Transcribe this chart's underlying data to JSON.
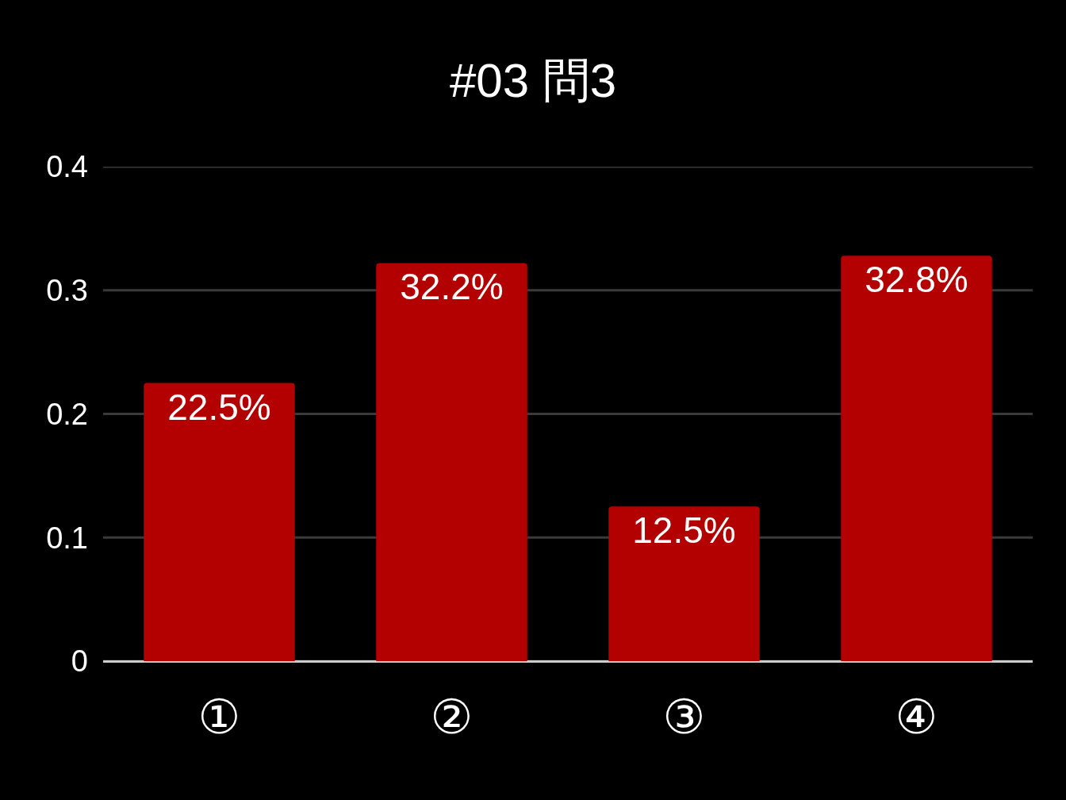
{
  "chart_data": {
    "type": "bar",
    "title": "#03 問3",
    "categories": [
      "①",
      "②",
      "③",
      "④"
    ],
    "values": [
      0.225,
      0.322,
      0.125,
      0.328
    ],
    "value_labels": [
      "22.5%",
      "32.2%",
      "12.5%",
      "32.8%"
    ],
    "color": "#b30000",
    "ylim": [
      0,
      0.4
    ],
    "yticks": [
      0,
      0.1,
      0.2,
      0.3,
      0.4
    ],
    "grid": "y"
  }
}
